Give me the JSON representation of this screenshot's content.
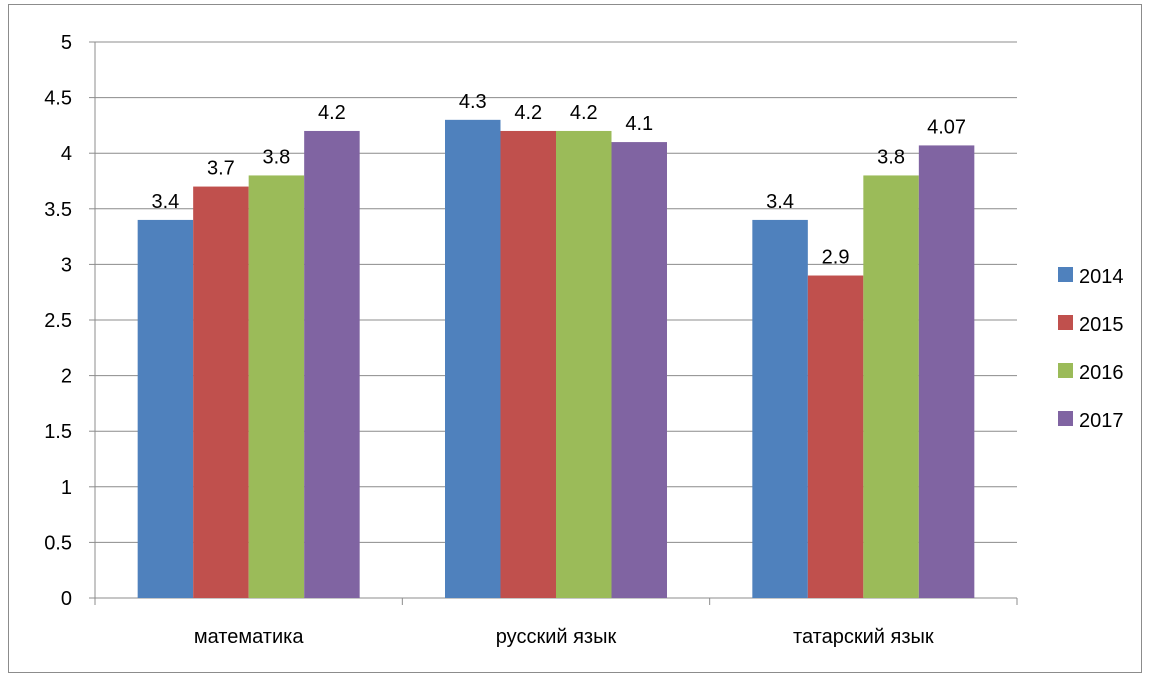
{
  "chart_data": {
    "type": "bar",
    "categories": [
      "математика",
      "русский язык",
      "татарский язык"
    ],
    "series": [
      {
        "name": "2014",
        "color": "#4f81bd",
        "values": [
          3.4,
          4.3,
          3.4
        ],
        "labels": [
          "3.4",
          "4.3",
          "3.4"
        ]
      },
      {
        "name": "2015",
        "color": "#c0504d",
        "values": [
          3.7,
          4.2,
          2.9
        ],
        "labels": [
          "3.7",
          "4.2",
          "2.9"
        ]
      },
      {
        "name": "2016",
        "color": "#9bbb59",
        "values": [
          3.8,
          4.2,
          3.8
        ],
        "labels": [
          "3.8",
          "4.2",
          "3.8"
        ]
      },
      {
        "name": "2017",
        "color": "#8064a2",
        "values": [
          4.2,
          4.1,
          4.07
        ],
        "labels": [
          "4.2",
          "4.1",
          "4.07"
        ]
      }
    ],
    "ylim": [
      0,
      5
    ],
    "yticks": [
      "0",
      "0.5",
      "1",
      "1.5",
      "2",
      "2.5",
      "3",
      "3.5",
      "4",
      "4.5",
      "5"
    ],
    "grid": true,
    "legend_position": "right"
  }
}
